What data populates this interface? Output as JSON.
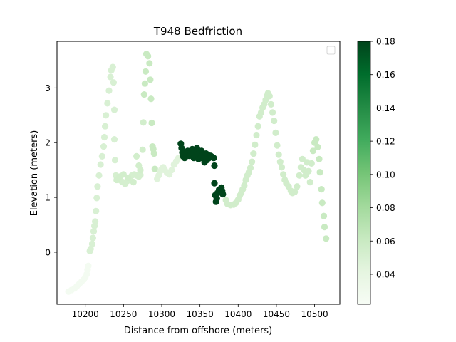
{
  "chart_data": {
    "type": "scatter",
    "title": "T948 Bedfriction",
    "xlabel": "Distance from offshore (meters)",
    "ylabel": "Elevation (meters)",
    "xlim": [
      10163,
      10533
    ],
    "ylim": [
      -0.95,
      3.85
    ],
    "xticks": [
      10200,
      10250,
      10300,
      10350,
      10400,
      10450,
      10500
    ],
    "yticks": [
      0,
      1,
      2,
      3
    ],
    "grid": false,
    "legend": {
      "placement": "top-right",
      "entries": []
    },
    "colorbar": {
      "label": "",
      "range": [
        0.022,
        0.18
      ],
      "ticks": [
        0.04,
        0.06,
        0.08,
        0.1,
        0.12,
        0.14,
        0.16,
        0.18
      ],
      "tick_labels": [
        "0.04",
        "0.06",
        "0.08",
        "0.10",
        "0.12",
        "0.14",
        "0.16",
        "0.18"
      ],
      "colors": [
        "#f7fcf5",
        "#e5f5e0",
        "#c7e9c0",
        "#a1d99b",
        "#74c476",
        "#41ab5d",
        "#238b45",
        "#006d2c",
        "#00441b"
      ]
    },
    "groups": [
      {
        "c": 0.026,
        "pts": [
          [
            10178,
            -0.72
          ],
          [
            10182,
            -0.69
          ],
          [
            10186,
            -0.66
          ],
          [
            10189,
            -0.62
          ],
          [
            10192,
            -0.58
          ],
          [
            10195,
            -0.54
          ],
          [
            10198,
            -0.5
          ],
          [
            10200,
            -0.46
          ],
          [
            10202,
            -0.4
          ],
          [
            10203,
            -0.32
          ],
          [
            10204,
            -0.25
          ]
        ]
      },
      {
        "c": 0.05,
        "pts": [
          [
            10206,
            0.02
          ],
          [
            10207,
            0.06
          ],
          [
            10209,
            0.15
          ],
          [
            10210,
            0.26
          ],
          [
            10211,
            0.38
          ],
          [
            10212,
            0.48
          ],
          [
            10213,
            0.56
          ],
          [
            10214,
            0.75
          ],
          [
            10215,
            0.99
          ],
          [
            10216,
            1.2
          ],
          [
            10218,
            1.4
          ],
          [
            10220,
            1.6
          ],
          [
            10222,
            1.75
          ],
          [
            10224,
            1.93
          ],
          [
            10225,
            2.1
          ],
          [
            10226,
            2.3
          ],
          [
            10227,
            2.5
          ],
          [
            10229,
            2.72
          ],
          [
            10231,
            2.95
          ],
          [
            10233,
            3.2
          ],
          [
            10234,
            3.32
          ],
          [
            10236,
            3.38
          ],
          [
            10237,
            3.1
          ],
          [
            10238,
            2.6
          ],
          [
            10238,
            2.06
          ],
          [
            10239,
            1.68
          ]
        ]
      },
      {
        "c": 0.052,
        "pts": [
          [
            10240,
            1.4
          ],
          [
            10243,
            1.36
          ],
          [
            10246,
            1.31
          ],
          [
            10249,
            1.28
          ],
          [
            10252,
            1.25
          ],
          [
            10255,
            1.3
          ],
          [
            10258,
            1.35
          ],
          [
            10261,
            1.4
          ],
          [
            10264,
            1.42
          ],
          [
            10267,
            1.4
          ],
          [
            10270,
            1.38
          ],
          [
            10272,
            1.41
          ]
        ]
      },
      {
        "c": 0.054,
        "pts": [
          [
            10241,
            1.32
          ],
          [
            10245,
            1.38
          ],
          [
            10250,
            1.42
          ],
          [
            10256,
            1.36
          ],
          [
            10263,
            1.28
          ],
          [
            10267,
            1.75
          ],
          [
            10270,
            1.58
          ],
          [
            10272,
            1.5
          ],
          [
            10275,
            1.87
          ],
          [
            10276,
            2.37
          ]
        ]
      },
      {
        "c": 0.06,
        "pts": [
          [
            10277,
            2.88
          ],
          [
            10278,
            3.08
          ],
          [
            10279,
            3.3
          ],
          [
            10280,
            3.62
          ],
          [
            10282,
            3.58
          ],
          [
            10284,
            3.45
          ],
          [
            10285,
            3.15
          ],
          [
            10286,
            2.8
          ],
          [
            10287,
            2.36
          ],
          [
            10288,
            1.93
          ],
          [
            10289,
            1.88
          ],
          [
            10290,
            1.8
          ],
          [
            10291,
            1.52
          ]
        ]
      },
      {
        "c": 0.045,
        "pts": [
          [
            10294,
            1.34
          ],
          [
            10296,
            1.4
          ],
          [
            10298,
            1.48
          ],
          [
            10300,
            1.52
          ],
          [
            10302,
            1.55
          ],
          [
            10304,
            1.5
          ],
          [
            10307,
            1.45
          ],
          [
            10310,
            1.42
          ],
          [
            10313,
            1.5
          ],
          [
            10316,
            1.6
          ],
          [
            10319,
            1.66
          ],
          [
            10322,
            1.72
          ]
        ]
      },
      {
        "c": 0.18,
        "pts": [
          [
            10325,
            1.98
          ],
          [
            10326,
            1.9
          ],
          [
            10327,
            1.82
          ],
          [
            10328,
            1.75
          ],
          [
            10330,
            1.72
          ],
          [
            10332,
            1.78
          ],
          [
            10334,
            1.85
          ],
          [
            10336,
            1.76
          ],
          [
            10338,
            1.83
          ],
          [
            10340,
            1.88
          ],
          [
            10341,
            1.8
          ],
          [
            10342,
            1.72
          ],
          [
            10344,
            1.86
          ],
          [
            10346,
            1.9
          ],
          [
            10347,
            1.78
          ],
          [
            10348,
            1.7
          ],
          [
            10350,
            1.82
          ],
          [
            10351,
            1.72
          ],
          [
            10352,
            1.85
          ],
          [
            10353,
            1.76
          ],
          [
            10355,
            1.7
          ],
          [
            10356,
            1.64
          ],
          [
            10357,
            1.74
          ],
          [
            10358,
            1.8
          ],
          [
            10359,
            1.68
          ],
          [
            10360,
            1.78
          ],
          [
            10362,
            1.72
          ],
          [
            10364,
            1.76
          ],
          [
            10366,
            1.74
          ],
          [
            10368,
            1.72
          ],
          [
            10369,
            1.58
          ],
          [
            10369,
            1.26
          ],
          [
            10370,
            1.04
          ],
          [
            10371,
            0.92
          ],
          [
            10372,
            0.98
          ],
          [
            10373,
            1.08
          ],
          [
            10375,
            1.14
          ],
          [
            10376,
            1.1
          ],
          [
            10378,
            1.18
          ],
          [
            10379,
            1.12
          ],
          [
            10380,
            1.06
          ]
        ]
      },
      {
        "c": 0.055,
        "pts": [
          [
            10384,
            0.95
          ],
          [
            10386,
            0.88
          ],
          [
            10390,
            0.86
          ],
          [
            10394,
            0.87
          ],
          [
            10397,
            0.9
          ],
          [
            10400,
            0.96
          ],
          [
            10402,
            1.03
          ],
          [
            10404,
            1.08
          ],
          [
            10406,
            1.15
          ],
          [
            10408,
            1.22
          ],
          [
            10410,
            1.32
          ],
          [
            10412,
            1.4
          ],
          [
            10414,
            1.46
          ],
          [
            10416,
            1.54
          ],
          [
            10418,
            1.65
          ],
          [
            10420,
            1.8
          ],
          [
            10422,
            1.96
          ],
          [
            10424,
            2.14
          ],
          [
            10426,
            2.3
          ],
          [
            10428,
            2.48
          ],
          [
            10430,
            2.55
          ],
          [
            10432,
            2.64
          ],
          [
            10434,
            2.7
          ],
          [
            10436,
            2.78
          ],
          [
            10438,
            2.86
          ],
          [
            10439,
            2.9
          ],
          [
            10441,
            2.85
          ],
          [
            10443,
            2.7
          ],
          [
            10445,
            2.55
          ],
          [
            10447,
            2.4
          ],
          [
            10449,
            2.18
          ],
          [
            10451,
            1.95
          ],
          [
            10453,
            1.78
          ],
          [
            10455,
            1.65
          ],
          [
            10457,
            1.55
          ],
          [
            10459,
            1.42
          ],
          [
            10461,
            1.32
          ],
          [
            10463,
            1.26
          ],
          [
            10466,
            1.2
          ],
          [
            10469,
            1.12
          ],
          [
            10471,
            1.08
          ],
          [
            10474,
            1.1
          ],
          [
            10477,
            1.2
          ],
          [
            10480,
            1.4
          ],
          [
            10482,
            1.55
          ],
          [
            10484,
            1.7
          ],
          [
            10486,
            1.5
          ],
          [
            10488,
            1.4
          ],
          [
            10490,
            1.64
          ],
          [
            10492,
            1.48
          ],
          [
            10494,
            1.28
          ],
          [
            10496,
            1.62
          ]
        ]
      },
      {
        "c": 0.06,
        "pts": [
          [
            10498,
            1.85
          ],
          [
            10500,
            2.0
          ],
          [
            10502,
            2.06
          ],
          [
            10504,
            1.92
          ],
          [
            10506,
            1.7
          ],
          [
            10507,
            1.46
          ],
          [
            10509,
            1.15
          ],
          [
            10510,
            0.9
          ],
          [
            10512,
            0.66
          ],
          [
            10513,
            0.46
          ],
          [
            10515,
            0.25
          ]
        ]
      }
    ]
  }
}
